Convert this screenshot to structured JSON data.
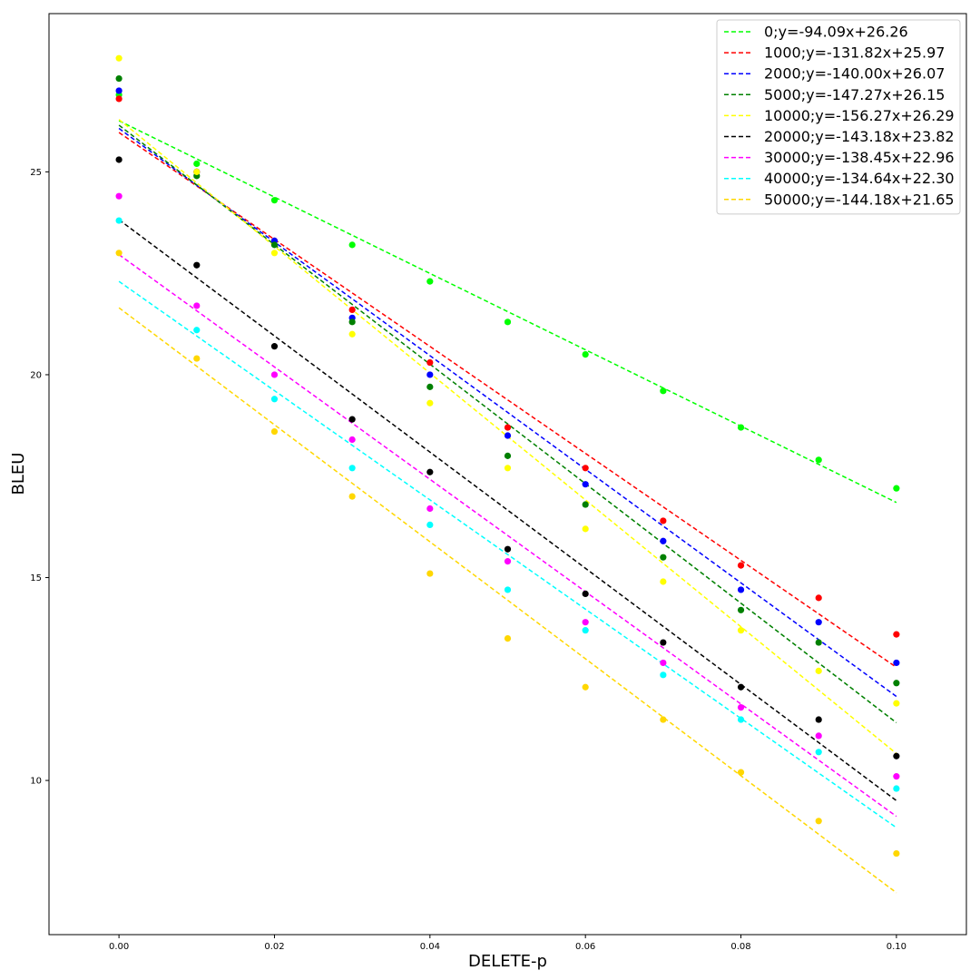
{
  "chart_data": {
    "type": "scatter",
    "title": "",
    "xlabel": "DELETE-p",
    "ylabel": "BLEU",
    "xlim": [
      -0.009,
      0.109
    ],
    "ylim": [
      6.2,
      28.9
    ],
    "x_ticks": [
      0.0,
      0.02,
      0.04,
      0.06,
      0.08,
      0.1
    ],
    "x_tick_labels": [
      "0.00",
      "0.02",
      "0.04",
      "0.06",
      "0.08",
      "0.10"
    ],
    "y_ticks": [
      10,
      15,
      20,
      25
    ],
    "y_tick_labels": [
      "10",
      "15",
      "20",
      "25"
    ],
    "grid": false,
    "legend_position": "top-right",
    "x": [
      0.0,
      0.01,
      0.02,
      0.03,
      0.04,
      0.05,
      0.06,
      0.07,
      0.08,
      0.09,
      0.1
    ],
    "series": [
      {
        "name": "0;y=-94.09x+26.26",
        "color": "#00ff00",
        "slope": -94.09,
        "intercept": 26.26,
        "values": [
          26.9,
          25.2,
          24.3,
          23.2,
          22.3,
          21.3,
          20.5,
          19.6,
          18.7,
          17.9,
          17.2
        ]
      },
      {
        "name": "1000;y=-131.82x+25.97",
        "color": "#ff0000",
        "slope": -131.82,
        "intercept": 25.97,
        "values": [
          26.8,
          25.0,
          23.3,
          21.6,
          20.3,
          18.7,
          17.7,
          16.4,
          15.3,
          14.5,
          13.6
        ]
      },
      {
        "name": "2000;y=-140.00x+26.07",
        "color": "#0000ff",
        "slope": -140.0,
        "intercept": 26.07,
        "values": [
          27.0,
          25.0,
          23.3,
          21.4,
          20.0,
          18.5,
          17.3,
          15.9,
          14.7,
          13.9,
          12.9
        ]
      },
      {
        "name": "5000;y=-147.27x+26.15",
        "color": "#008000",
        "slope": -147.27,
        "intercept": 26.15,
        "values": [
          27.3,
          24.9,
          23.2,
          21.3,
          19.7,
          18.0,
          16.8,
          15.5,
          14.2,
          13.4,
          12.4
        ]
      },
      {
        "name": "10000;y=-156.27x+26.29",
        "color": "#ffff00",
        "slope": -156.27,
        "intercept": 26.29,
        "values": [
          27.8,
          25.0,
          23.0,
          21.0,
          19.3,
          17.7,
          16.2,
          14.9,
          13.7,
          12.7,
          11.9
        ]
      },
      {
        "name": "20000;y=-143.18x+23.82",
        "color": "#000000",
        "slope": -143.18,
        "intercept": 23.82,
        "values": [
          25.3,
          22.7,
          20.7,
          18.9,
          17.6,
          15.7,
          14.6,
          13.4,
          12.3,
          11.5,
          10.6
        ]
      },
      {
        "name": "30000;y=-138.45x+22.96",
        "color": "#ff00ff",
        "slope": -138.45,
        "intercept": 22.96,
        "values": [
          24.4,
          21.7,
          20.0,
          18.4,
          16.7,
          15.4,
          13.9,
          12.9,
          11.8,
          11.1,
          10.1
        ]
      },
      {
        "name": "40000;y=-134.64x+22.30",
        "color": "#00ffff",
        "slope": -134.64,
        "intercept": 22.3,
        "values": [
          23.8,
          21.1,
          19.4,
          17.7,
          16.3,
          14.7,
          13.7,
          12.6,
          11.5,
          10.7,
          9.8
        ]
      },
      {
        "name": "50000;y=-144.18x+21.65",
        "color": "#ffd700",
        "slope": -144.18,
        "intercept": 21.65,
        "values": [
          23.0,
          20.4,
          18.6,
          17.0,
          15.1,
          13.5,
          12.3,
          11.5,
          10.2,
          9.0,
          8.2
        ]
      }
    ]
  }
}
